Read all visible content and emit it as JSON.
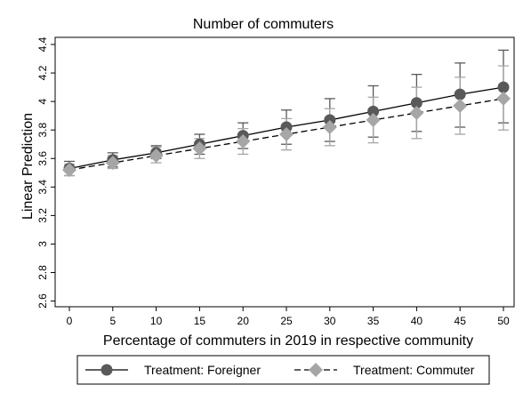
{
  "chart_data": {
    "type": "line",
    "title": "Number of commuters",
    "xlabel": "Percentage of commuters in 2019 in respective community",
    "ylabel": "Linear Prediction",
    "x": [
      0,
      5,
      10,
      15,
      20,
      25,
      30,
      35,
      40,
      45,
      50
    ],
    "xticks": [
      "0",
      "5",
      "10",
      "15",
      "20",
      "25",
      "30",
      "35",
      "40",
      "45",
      "50"
    ],
    "yticks": [
      "2.6",
      "2.8",
      "3",
      "3.2",
      "3.4",
      "3.6",
      "3.8",
      "4",
      "4.2",
      "4.4"
    ],
    "xlim": [
      0,
      50
    ],
    "ylim": [
      2.56,
      4.45
    ],
    "grid": false,
    "legend_position": "bottom",
    "series": [
      {
        "name": "Treatment: Foreigner",
        "color": "#595959",
        "marker": "circle",
        "line_style": "solid",
        "values": [
          3.53,
          3.59,
          3.64,
          3.7,
          3.76,
          3.82,
          3.87,
          3.93,
          3.99,
          4.05,
          4.1
        ],
        "ci_low": [
          3.48,
          3.54,
          3.6,
          3.63,
          3.67,
          3.7,
          3.72,
          3.75,
          3.79,
          3.82,
          3.85
        ],
        "ci_high": [
          3.58,
          3.64,
          3.69,
          3.77,
          3.85,
          3.94,
          4.02,
          4.11,
          4.19,
          4.27,
          4.36
        ]
      },
      {
        "name": "Treatment: Commuter",
        "color": "#a6a6a6",
        "marker": "diamond",
        "line_style": "dashed",
        "values": [
          3.52,
          3.57,
          3.62,
          3.67,
          3.72,
          3.77,
          3.82,
          3.87,
          3.92,
          3.97,
          4.02
        ],
        "ci_low": [
          3.48,
          3.53,
          3.57,
          3.6,
          3.63,
          3.66,
          3.69,
          3.71,
          3.74,
          3.77,
          3.8
        ],
        "ci_high": [
          3.56,
          3.62,
          3.68,
          3.74,
          3.81,
          3.88,
          3.95,
          4.03,
          4.1,
          4.17,
          4.25
        ]
      }
    ]
  }
}
